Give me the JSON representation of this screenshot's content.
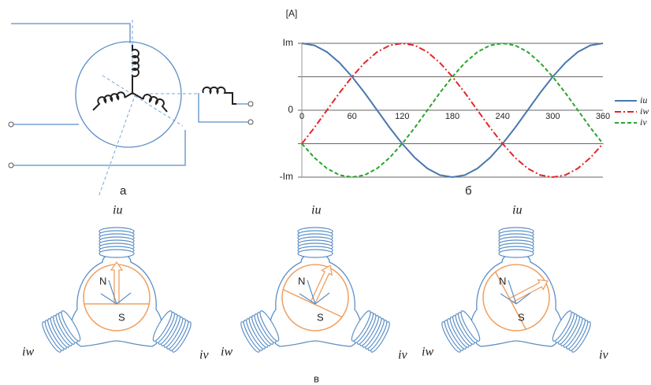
{
  "panel_labels": {
    "a": "а",
    "b": "б",
    "c": "в"
  },
  "chart_data": {
    "type": "line",
    "y_label": "[A]",
    "x": [
      0,
      15,
      30,
      45,
      60,
      75,
      90,
      105,
      120,
      135,
      150,
      165,
      180,
      195,
      210,
      225,
      240,
      255,
      270,
      285,
      300,
      315,
      330,
      345,
      360
    ],
    "series": [
      {
        "name": "iu",
        "color": "#4a78ad",
        "dash": "solid",
        "values": [
          1,
          0.97,
          0.87,
          0.71,
          0.5,
          0.26,
          0,
          -0.26,
          -0.5,
          -0.71,
          -0.87,
          -0.97,
          -1,
          -0.97,
          -0.87,
          -0.71,
          -0.5,
          -0.26,
          0,
          0.26,
          0.5,
          0.71,
          0.87,
          0.97,
          1
        ]
      },
      {
        "name": "iw",
        "color": "#e02828",
        "dash": "dashdot",
        "values": [
          -0.5,
          -0.26,
          0,
          0.26,
          0.5,
          0.71,
          0.87,
          0.97,
          1,
          0.97,
          0.87,
          0.71,
          0.5,
          0.26,
          0,
          -0.26,
          -0.5,
          -0.71,
          -0.87,
          -0.97,
          -1,
          -0.97,
          -0.87,
          -0.71,
          -0.5
        ]
      },
      {
        "name": "iv",
        "color": "#2aa52a",
        "dash": "dashed",
        "values": [
          -0.5,
          -0.71,
          -0.87,
          -0.97,
          -1,
          -0.97,
          -0.87,
          -0.71,
          -0.5,
          -0.26,
          0,
          0.26,
          0.5,
          0.71,
          0.87,
          0.97,
          1,
          0.97,
          0.87,
          0.71,
          0.5,
          0.26,
          0,
          -0.26,
          -0.5
        ]
      }
    ],
    "xlim": [
      0,
      360
    ],
    "xticks": [
      0,
      60,
      120,
      180,
      240,
      300,
      360
    ],
    "ylim": [
      -1,
      1
    ],
    "yticks": [
      {
        "value": 1,
        "label": "Im"
      },
      {
        "value": 0.5,
        "label": null
      },
      0,
      {
        "value": -0.5,
        "label": null
      },
      {
        "value": -1,
        "label": "-Im"
      }
    ],
    "grid": true,
    "legend": "right"
  },
  "motors": [
    {
      "iu": "iu",
      "iw": "iw",
      "iv": "iv",
      "north": "N",
      "south": "S"
    },
    {
      "iu": "iu",
      "iw": "iw",
      "iv": "iv",
      "north": "N",
      "south": "S"
    },
    {
      "iu": "iu",
      "iw": "iw",
      "iv": "iv",
      "north": "N",
      "south": "S"
    }
  ]
}
